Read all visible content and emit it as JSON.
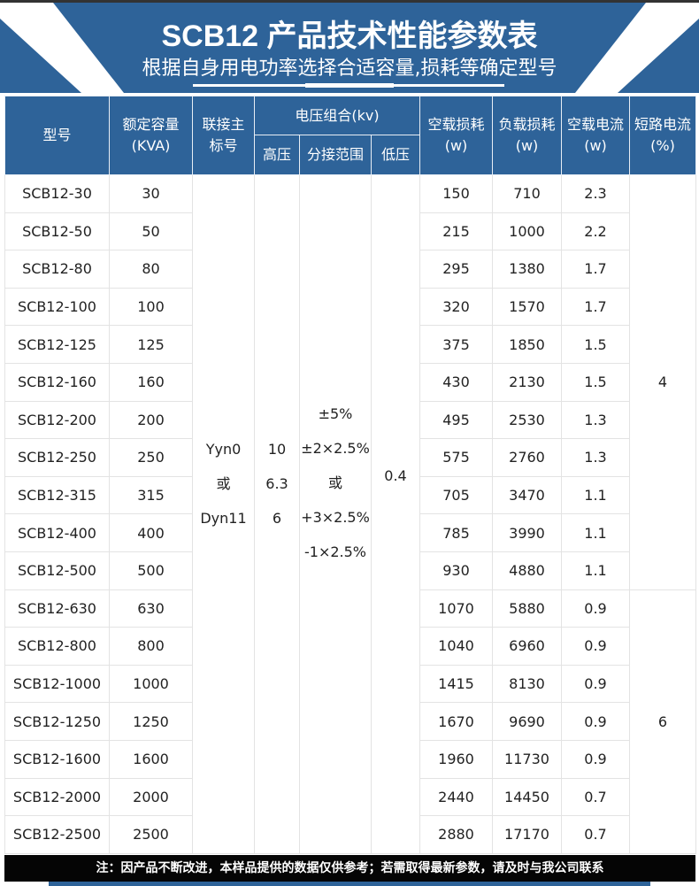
{
  "header": {
    "title": "SCB12 产品技术性能参数表",
    "subtitle": "根据自身用电功率选择合适容量,损耗等确定型号"
  },
  "columns": {
    "model": "型号",
    "capacity": "额定容量",
    "capacity_unit": "(KVA)",
    "connection": "联接主",
    "connection2": "标号",
    "voltage": "电压组合(kv)",
    "hv": "高压",
    "tap": "分接范围",
    "lv": "低压",
    "noload_loss": "空载损耗",
    "noload_loss_unit": "(w)",
    "load_loss": "负载损耗",
    "load_loss_unit": "(w)",
    "noload_current": "空载电流",
    "noload_current_unit": "(w)",
    "impedance": "短路电流",
    "impedance_unit": "(%)"
  },
  "merged": {
    "connection": [
      "Yyn0",
      "或",
      "Dyn11"
    ],
    "hv": [
      "10",
      "6.3",
      "6"
    ],
    "tap": [
      "±5%",
      "±2×2.5%",
      "或",
      "+3×2.5%",
      "-1×2.5%"
    ],
    "lv": "0.4",
    "impedance_a": "4",
    "impedance_b": "6"
  },
  "rows": [
    [
      "SCB12-30",
      "30",
      "150",
      "710",
      "2.3"
    ],
    [
      "SCB12-50",
      "50",
      "215",
      "1000",
      "2.2"
    ],
    [
      "SCB12-80",
      "80",
      "295",
      "1380",
      "1.7"
    ],
    [
      "SCB12-100",
      "100",
      "320",
      "1570",
      "1.7"
    ],
    [
      "SCB12-125",
      "125",
      "375",
      "1850",
      "1.5"
    ],
    [
      "SCB12-160",
      "160",
      "430",
      "2130",
      "1.5"
    ],
    [
      "SCB12-200",
      "200",
      "495",
      "2530",
      "1.3"
    ],
    [
      "SCB12-250",
      "250",
      "575",
      "2760",
      "1.3"
    ],
    [
      "SCB12-315",
      "315",
      "705",
      "3470",
      "1.1"
    ],
    [
      "SCB12-400",
      "400",
      "785",
      "3990",
      "1.1"
    ],
    [
      "SCB12-500",
      "500",
      "930",
      "4880",
      "1.1"
    ],
    [
      "SCB12-630",
      "630",
      "1070",
      "5880",
      "0.9"
    ],
    [
      "SCB12-800",
      "800",
      "1040",
      "6960",
      "0.9"
    ],
    [
      "SCB12-1000",
      "1000",
      "1415",
      "8130",
      "0.9"
    ],
    [
      "SCB12-1250",
      "1250",
      "1670",
      "9690",
      "0.9"
    ],
    [
      "SCB12-1600",
      "1600",
      "1960",
      "11730",
      "0.9"
    ],
    [
      "SCB12-2000",
      "2000",
      "2440",
      "14450",
      "0.7"
    ],
    [
      "SCB12-2500",
      "2500",
      "2880",
      "17170",
      "0.7"
    ]
  ],
  "footer": "注：因产品不断改进，本样品提供的数据仅供参考；若需取得最新参数，请及时与我公司联系",
  "colors": {
    "brand_blue": "#2e6399",
    "footer_bg": "#050505"
  }
}
